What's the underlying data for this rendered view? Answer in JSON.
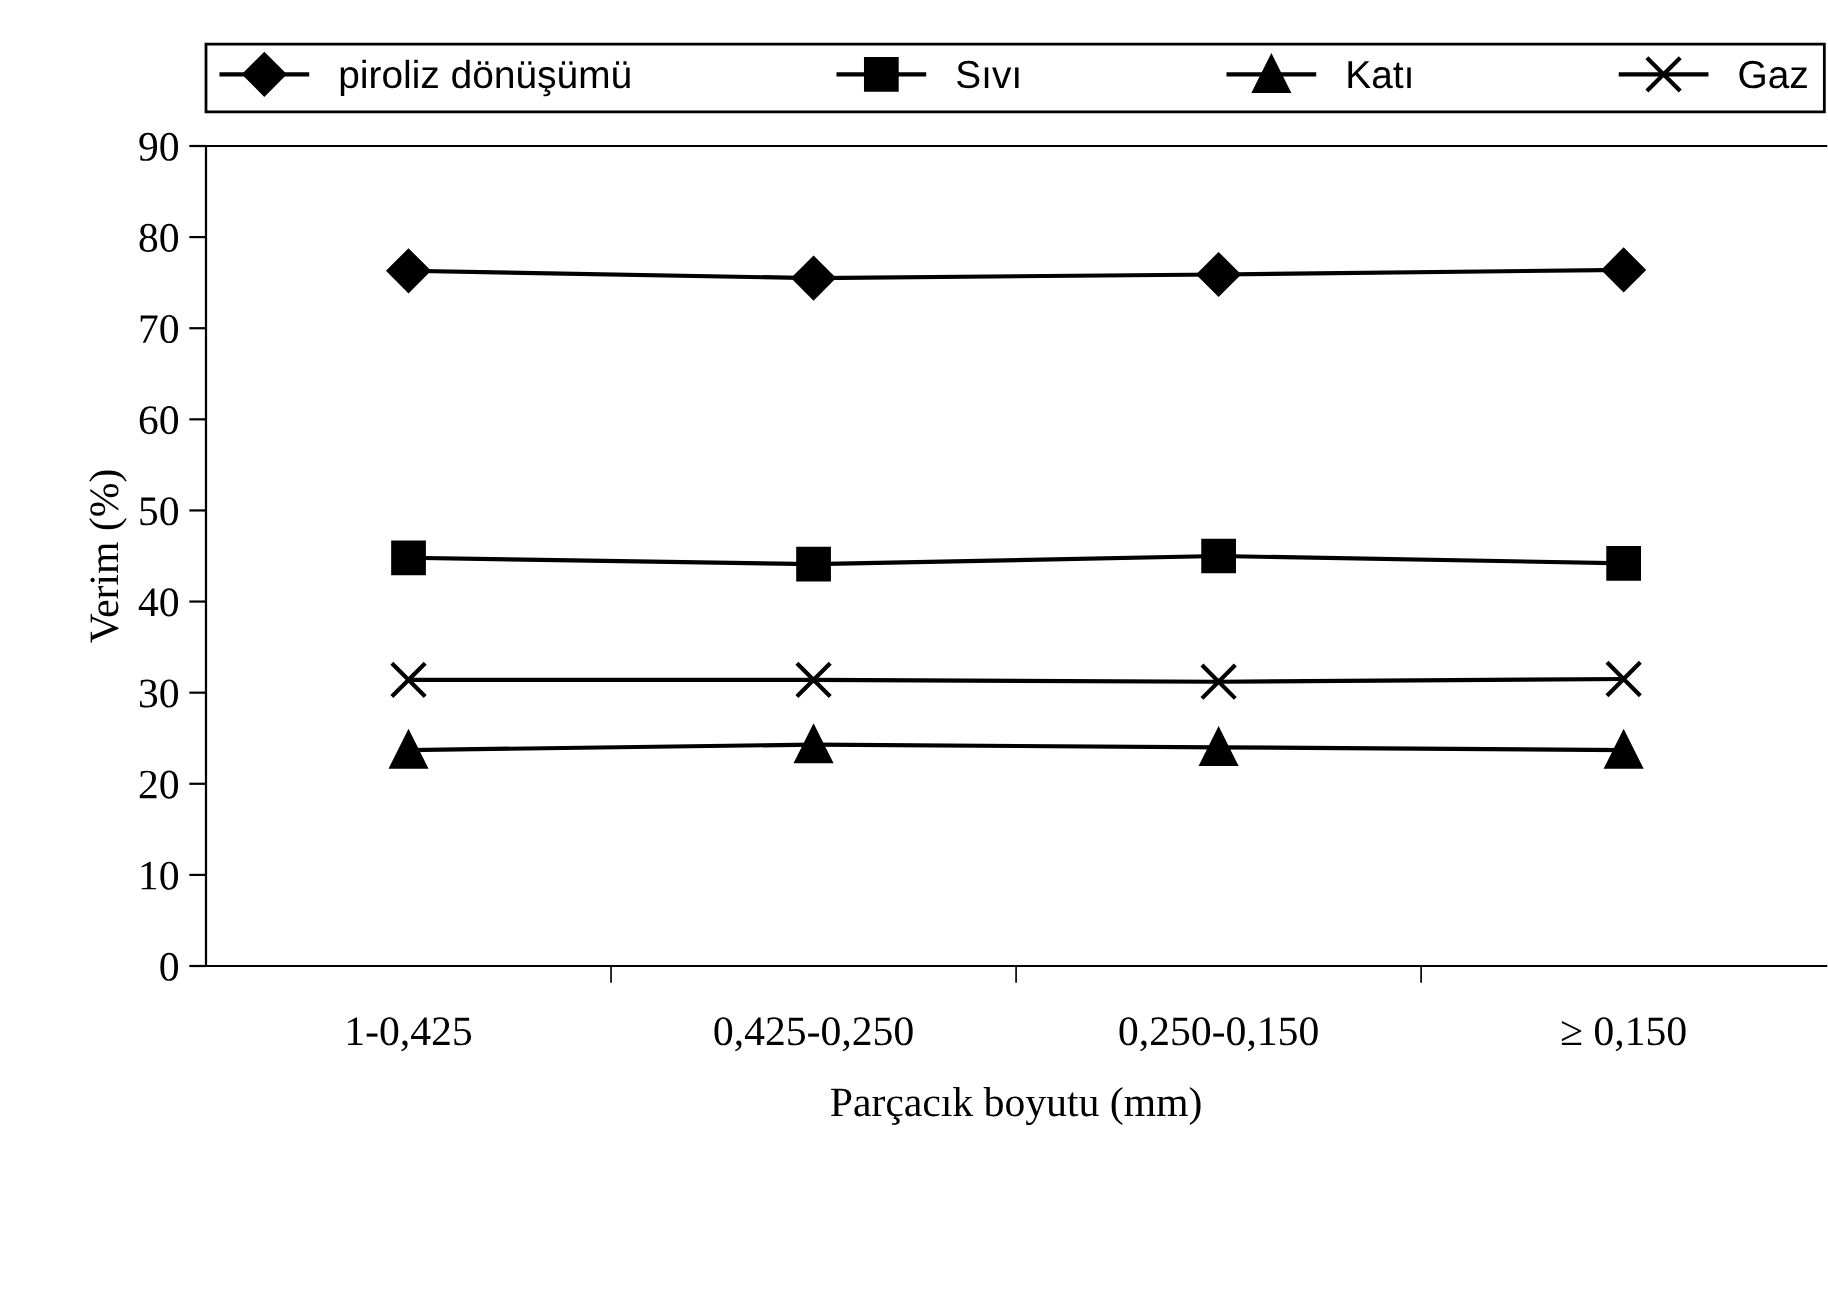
{
  "chart_data": {
    "type": "line",
    "xlabel": "Parçacık boyutu (mm)",
    "ylabel": "Verim (%)",
    "categories": [
      "1-0,425",
      "0,425-0,250",
      "0,250-0,150",
      "≥ 0,150"
    ],
    "ylim": [
      0,
      90
    ],
    "yticks": [
      0,
      10,
      20,
      30,
      40,
      50,
      60,
      70,
      80,
      90
    ],
    "grid": false,
    "legend": "top",
    "series": [
      {
        "name": "piroliz dönüşümü",
        "color": "#000000",
        "marker": "diamond",
        "values": [
          76.3,
          75.5,
          75.9,
          76.4
        ]
      },
      {
        "name": "Sıvı",
        "color": "#000000",
        "marker": "square",
        "values": [
          44.8,
          44.1,
          45.0,
          44.2
        ]
      },
      {
        "name": "Katı",
        "color": "#000000",
        "marker": "triangle",
        "values": [
          23.7,
          24.3,
          24.0,
          23.7
        ]
      },
      {
        "name": "Gaz",
        "color": "#000000",
        "marker": "cross",
        "values": [
          31.4,
          31.4,
          31.2,
          31.5
        ]
      }
    ]
  }
}
